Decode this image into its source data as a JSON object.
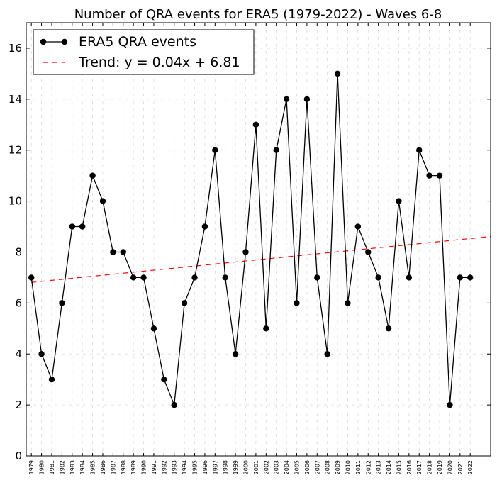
{
  "chart_data": {
    "type": "line",
    "title": "Number of QRA events for ERA5 (1979-2022) - Waves 6-8",
    "xlabel": "",
    "ylabel": "",
    "ylim": [
      0,
      17
    ],
    "yticks": [
      0,
      2,
      4,
      6,
      8,
      10,
      12,
      14,
      16
    ],
    "x": [
      1979,
      1980,
      1981,
      1982,
      1983,
      1984,
      1985,
      1986,
      1987,
      1988,
      1989,
      1990,
      1991,
      1992,
      1993,
      1994,
      1995,
      1996,
      1997,
      1998,
      1999,
      2000,
      2001,
      2002,
      2003,
      2004,
      2005,
      2006,
      2007,
      2008,
      2009,
      2010,
      2011,
      2012,
      2013,
      2014,
      2015,
      2016,
      2017,
      2018,
      2019,
      2020,
      2021,
      2022
    ],
    "xlim": [
      1978.5,
      2024
    ],
    "grid": true,
    "legend_position": "top-left",
    "series": [
      {
        "name": "ERA5 QRA events",
        "color": "#000000",
        "style": "line-with-markers",
        "values": [
          7,
          4,
          3,
          6,
          9,
          9,
          11,
          10,
          8,
          8,
          7,
          7,
          5,
          3,
          2,
          6,
          7,
          9,
          12,
          7,
          4,
          8,
          13,
          5,
          12,
          14,
          6,
          14,
          7,
          4,
          15,
          6,
          9,
          8,
          7,
          5,
          10,
          7,
          12,
          11,
          11,
          2,
          7,
          7
        ]
      },
      {
        "name": "Trend: y = 0.04x + 6.81",
        "color": "#ff0000",
        "style": "dashed",
        "slope": 0.04,
        "intercept": 6.81,
        "x_start": 1979,
        "x_end": 2024
      }
    ]
  }
}
